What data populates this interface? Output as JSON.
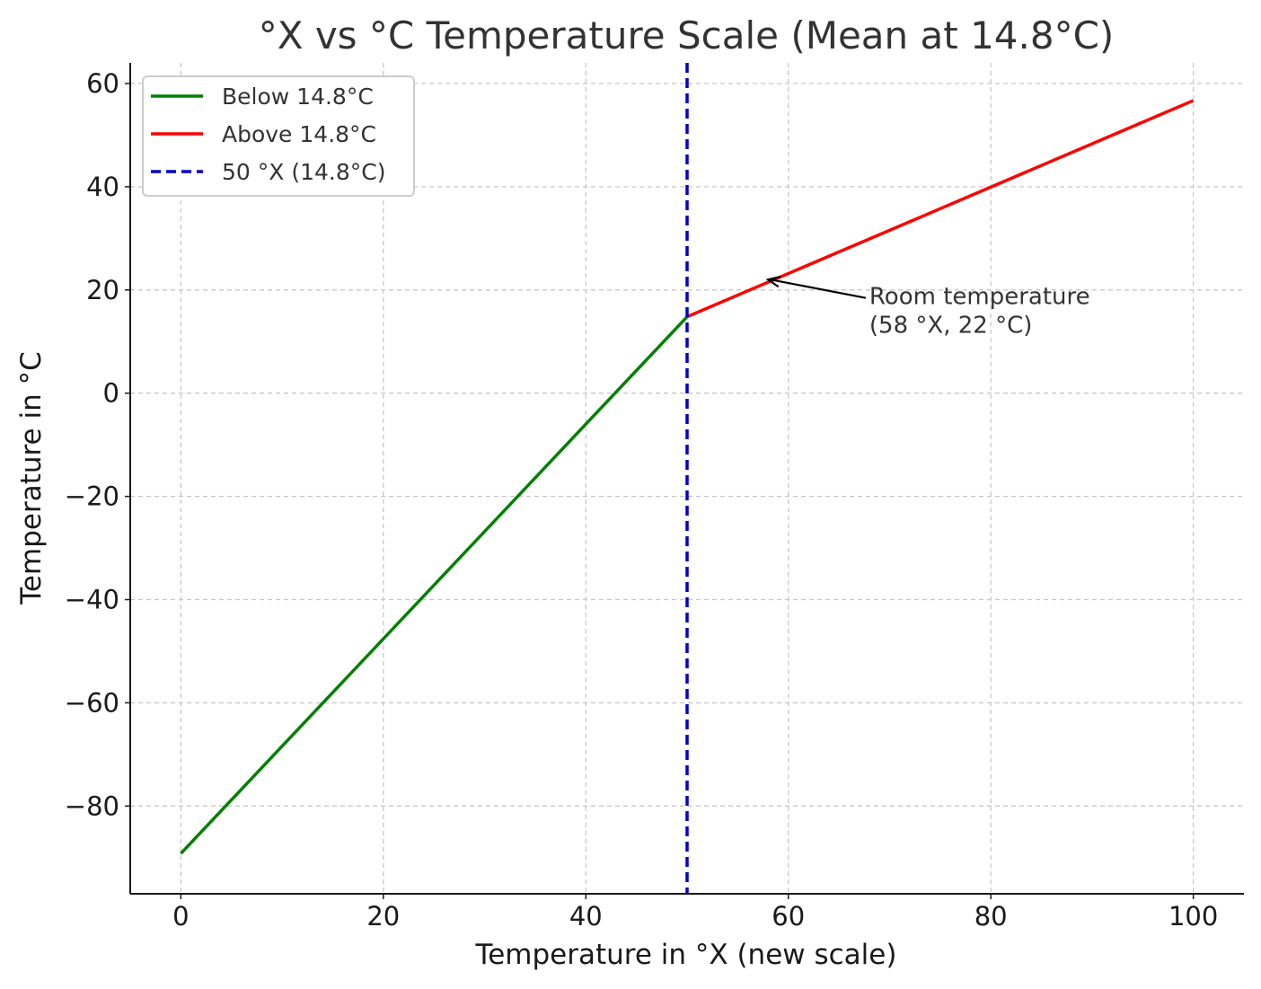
{
  "chart_data": {
    "type": "line",
    "title": "°X vs °C Temperature Scale (Mean at 14.8°C)",
    "xlabel": "Temperature in °X (new scale)",
    "ylabel": "Temperature in °C",
    "xlim": [
      -5,
      105
    ],
    "ylim": [
      -97,
      64
    ],
    "x_ticks": [
      0,
      20,
      40,
      60,
      80,
      100
    ],
    "y_ticks": [
      -80,
      -60,
      -40,
      -20,
      0,
      20,
      40,
      60
    ],
    "x_tick_labels": [
      "0",
      "20",
      "40",
      "60",
      "80",
      "100"
    ],
    "y_tick_labels": [
      "−80",
      "−60",
      "−40",
      "−20",
      "0",
      "20",
      "40",
      "60"
    ],
    "grid": true,
    "legend_position": "top-left",
    "series": [
      {
        "name": "Below 14.8°C",
        "color": "#008000",
        "style": "solid",
        "x": [
          0,
          50
        ],
        "y": [
          -89.2,
          14.8
        ]
      },
      {
        "name": "Above 14.8°C",
        "color": "#ff0000",
        "style": "solid",
        "x": [
          50,
          100
        ],
        "y": [
          14.8,
          56.7
        ]
      }
    ],
    "vline": {
      "name": "50 °X (14.8°C)",
      "x": 50,
      "color": "#0000cc",
      "style": "dashed"
    },
    "annotation": {
      "lines": [
        "Room temperature",
        "(58 °X, 22 °C)"
      ],
      "point": [
        58,
        22
      ],
      "text_anchor": [
        68,
        18.8
      ]
    }
  }
}
